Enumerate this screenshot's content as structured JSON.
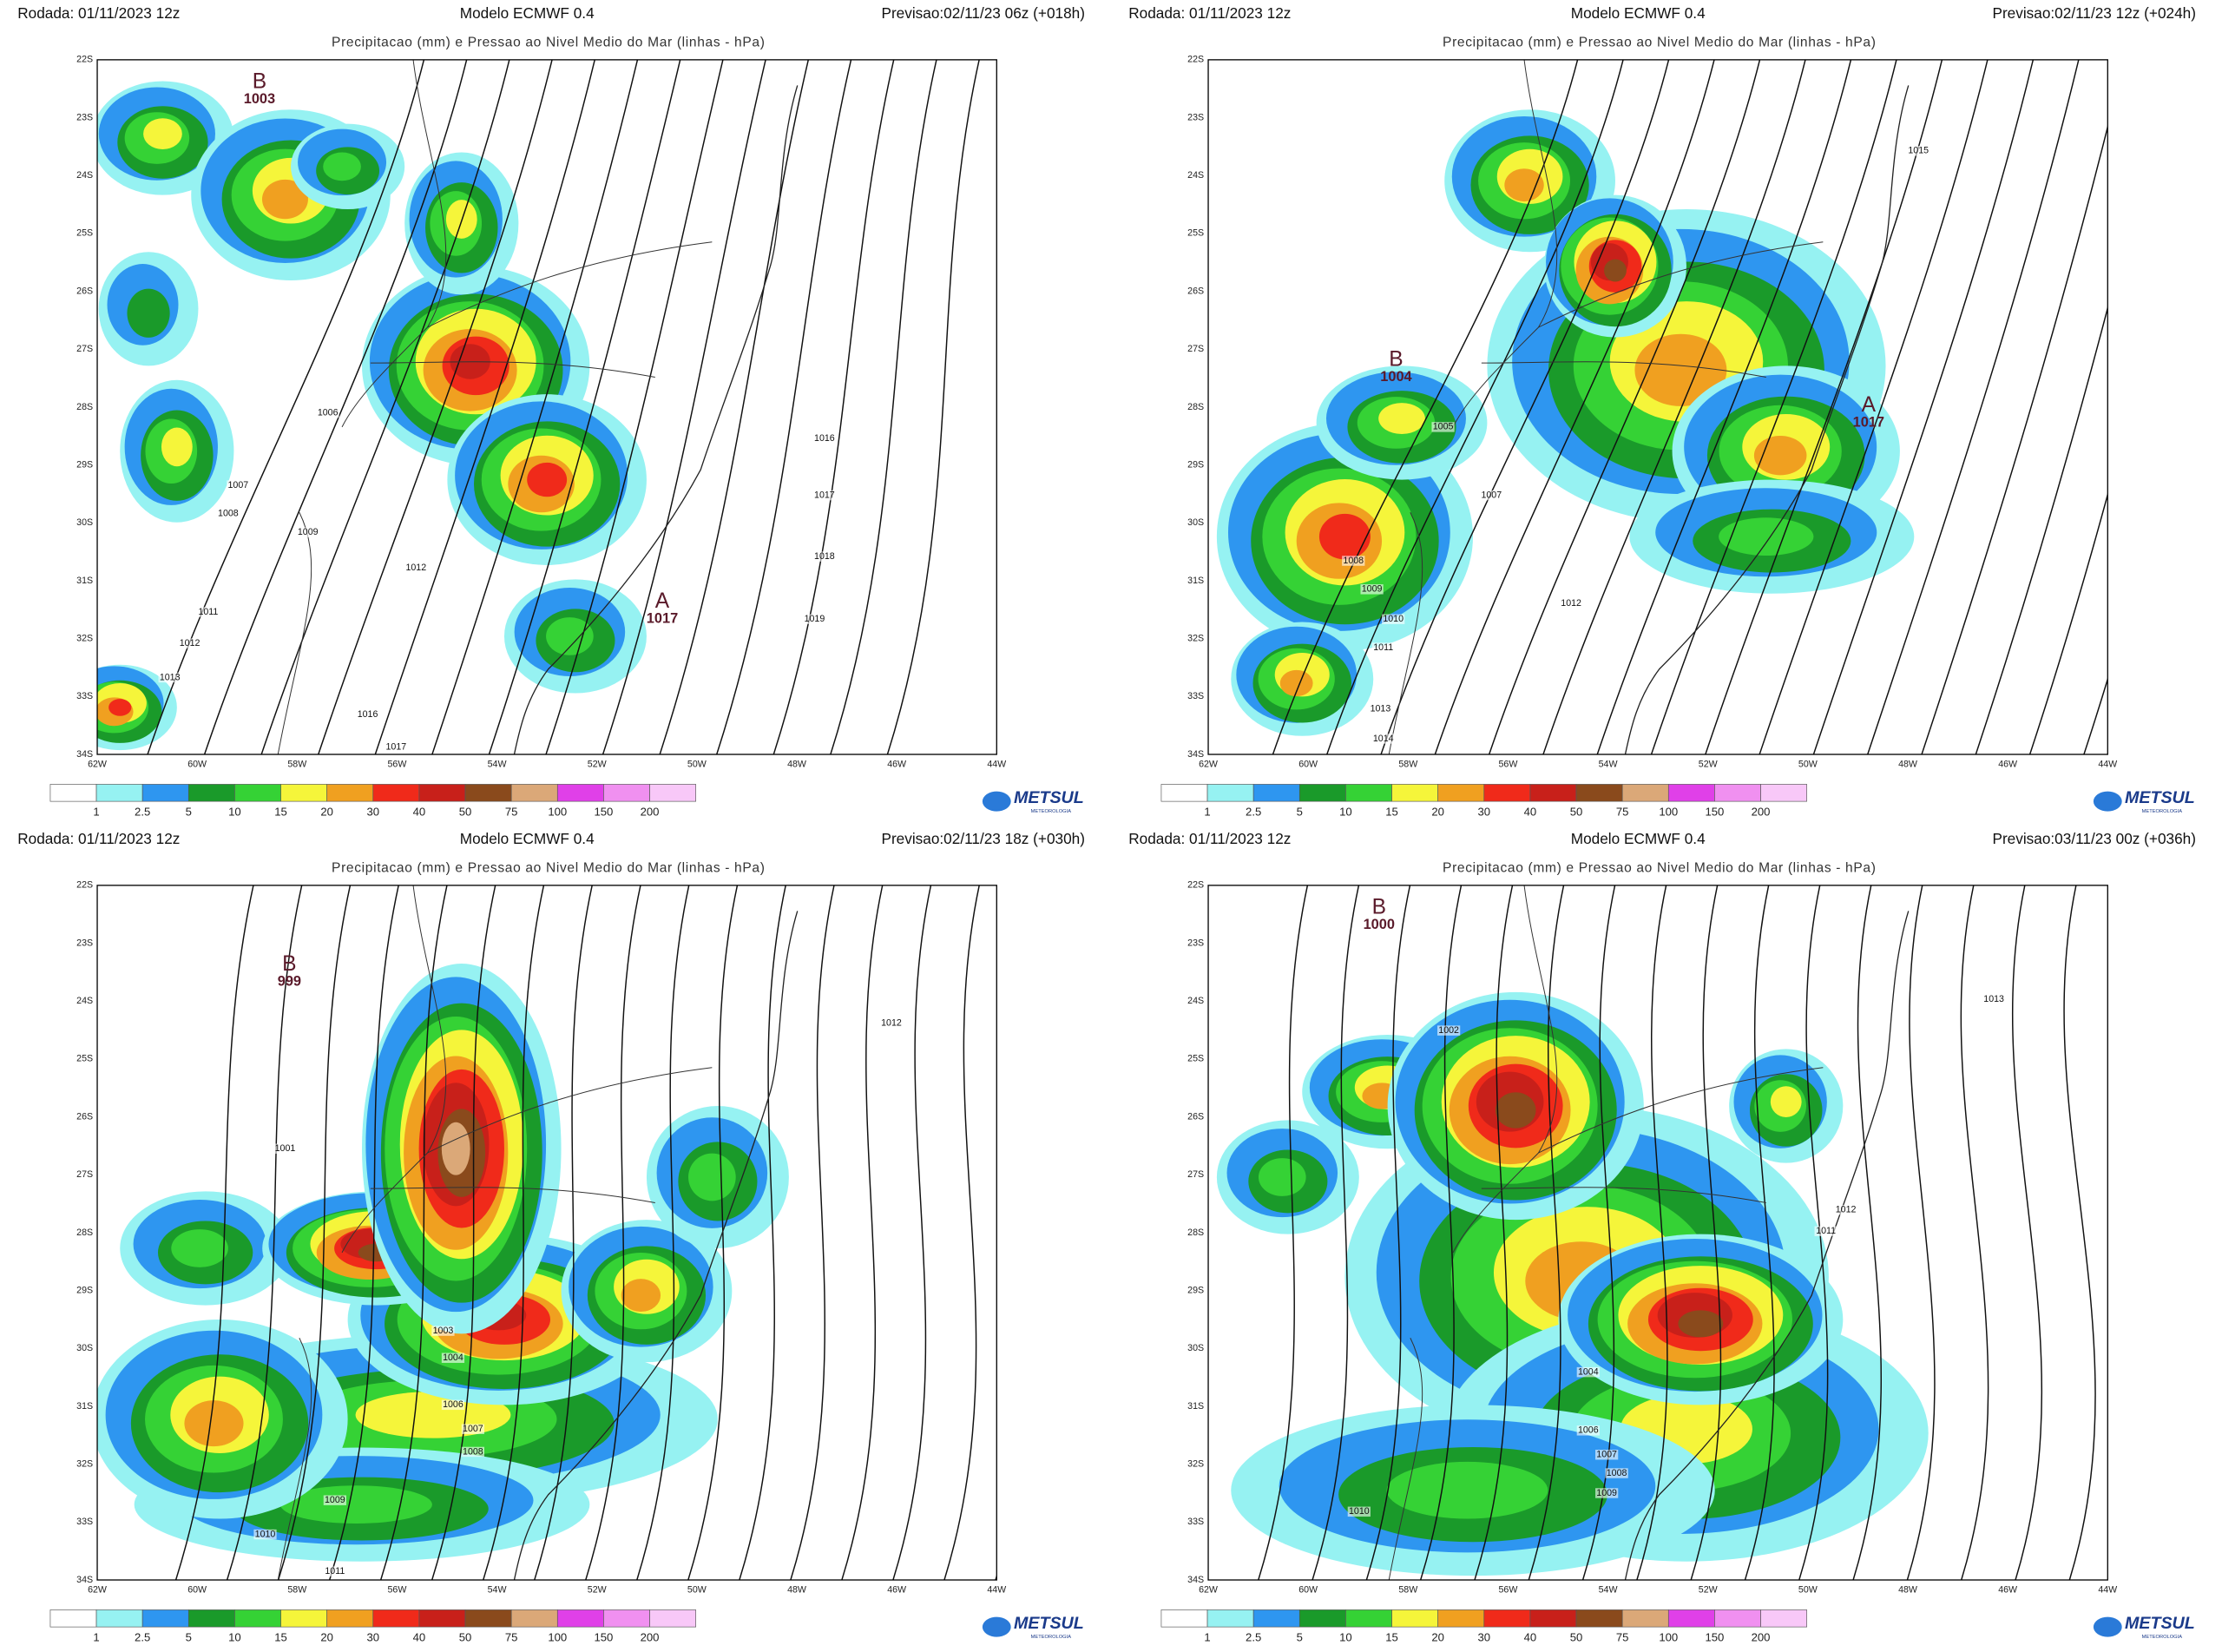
{
  "run": "Rodada: 01/11/2023 12z",
  "model": "Modelo ECMWF 0.4",
  "title": "Precipitacao (mm) e Pressao ao Nivel Medio do Mar (linhas - hPa)",
  "lat_labels": [
    "22S",
    "23S",
    "24S",
    "25S",
    "26S",
    "27S",
    "28S",
    "29S",
    "30S",
    "31S",
    "32S",
    "33S",
    "34S"
  ],
  "lon_labels": [
    "62W",
    "60W",
    "58W",
    "56W",
    "54W",
    "52W",
    "50W",
    "48W",
    "46W",
    "44W"
  ],
  "legend": {
    "colors": [
      "#ffffff",
      "#96f2f2",
      "#2e96f0",
      "#1a9a2a",
      "#35d235",
      "#f5f53a",
      "#f0a020",
      "#f02a1a",
      "#c8201a",
      "#8a4a1c",
      "#dba878",
      "#e040e8",
      "#f090f0",
      "#f8c8f8"
    ],
    "labels": [
      "1",
      "2.5",
      "5",
      "10",
      "15",
      "20",
      "30",
      "40",
      "50",
      "75",
      "100",
      "150",
      "200"
    ]
  },
  "logo": {
    "name": "METSUL",
    "tagline": "METEOROLOGIA"
  },
  "panels": [
    {
      "forecast": "Previsao:02/11/23 06z (+018h)",
      "centers": [
        {
          "letter": "B",
          "value": 1003
        },
        {
          "letter": "A",
          "value": 1017
        }
      ],
      "isobar_labels": [
        1006,
        1007,
        1008,
        1009,
        1012,
        1011,
        1012,
        1013,
        1016,
        1017,
        1016,
        1017,
        1018,
        1019
      ]
    },
    {
      "forecast": "Previsao:02/11/23 12z (+024h)",
      "centers": [
        {
          "letter": "B",
          "value": 1004
        },
        {
          "letter": "A",
          "value": 1017
        }
      ],
      "isobar_labels": [
        1015,
        1005,
        1007,
        1008,
        1009,
        1010,
        1011,
        1012,
        1013,
        1014
      ]
    },
    {
      "forecast": "Previsao:02/11/23 18z (+030h)",
      "centers": [
        {
          "letter": "B",
          "value": 999
        }
      ],
      "isobar_labels": [
        1012,
        1001,
        1003,
        1004,
        1006,
        1007,
        1008,
        1009,
        1010,
        1011
      ]
    },
    {
      "forecast": "Previsao:03/11/23 00z (+036h)",
      "centers": [
        {
          "letter": "B",
          "value": 1000
        }
      ],
      "isobar_labels": [
        1002,
        1013,
        1012,
        1011,
        1004,
        1006,
        1007,
        1008,
        1009,
        1010
      ]
    }
  ]
}
